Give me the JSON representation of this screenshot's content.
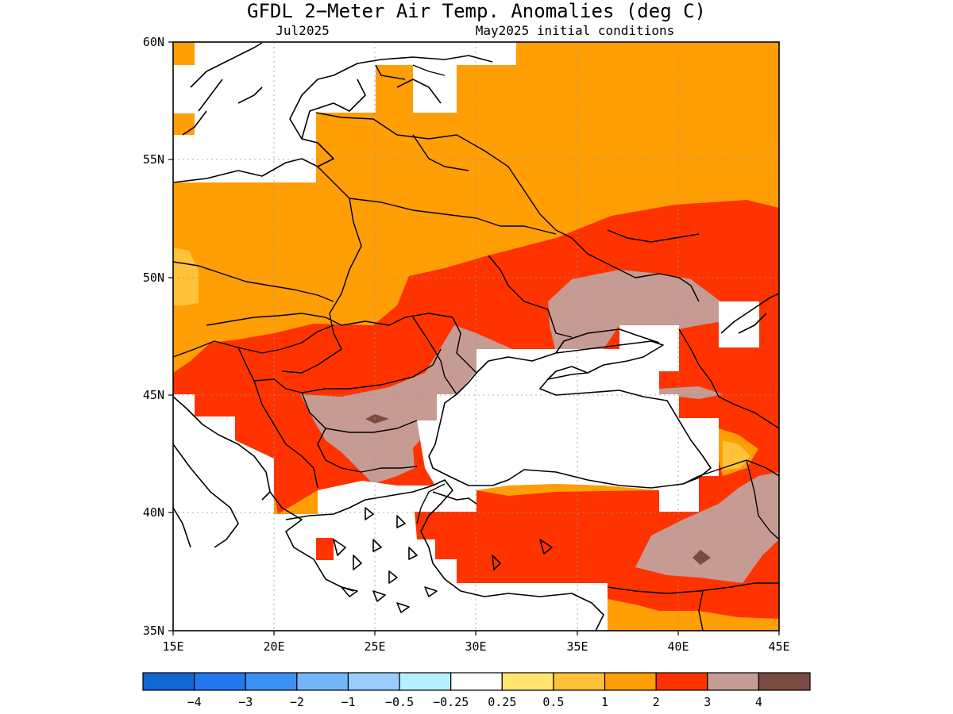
{
  "title": "GFDL 2−Meter Air Temp. Anomalies (deg C)",
  "subtitle_left": "Jul2025",
  "subtitle_right": "May2025 initial conditions",
  "map": {
    "lon_range": [
      15,
      45
    ],
    "lat_range": [
      35,
      60
    ],
    "x_ticks": [
      "15E",
      "20E",
      "25E",
      "30E",
      "35E",
      "40E",
      "45E"
    ],
    "y_ticks": [
      "60N",
      "55N",
      "50N",
      "45N",
      "40N",
      "35N"
    ],
    "grid": "dotted, 5 degree spacing",
    "colors": {
      "0.5-1": "#ffc03a",
      "1-2": "#ff9e05",
      "2-3": "#fe3300",
      "3-4": "#c59b93",
      "above-4": "#794b42",
      "missing": "#ffffff"
    }
  },
  "colorbar": {
    "colors": [
      "#1366d6",
      "#2277ee",
      "#3c91f5",
      "#75b5fa",
      "#98cdfc",
      "#b5f0fe",
      "#ffffff",
      "#ffe472",
      "#ffc03a",
      "#ff9e05",
      "#fe3300",
      "#c59b93",
      "#794b42"
    ],
    "labels": [
      "−4",
      "−3",
      "−2",
      "−1",
      "−0.5",
      "−0.25",
      "0.25",
      "0.5",
      "1",
      "2",
      "3",
      "4"
    ]
  }
}
